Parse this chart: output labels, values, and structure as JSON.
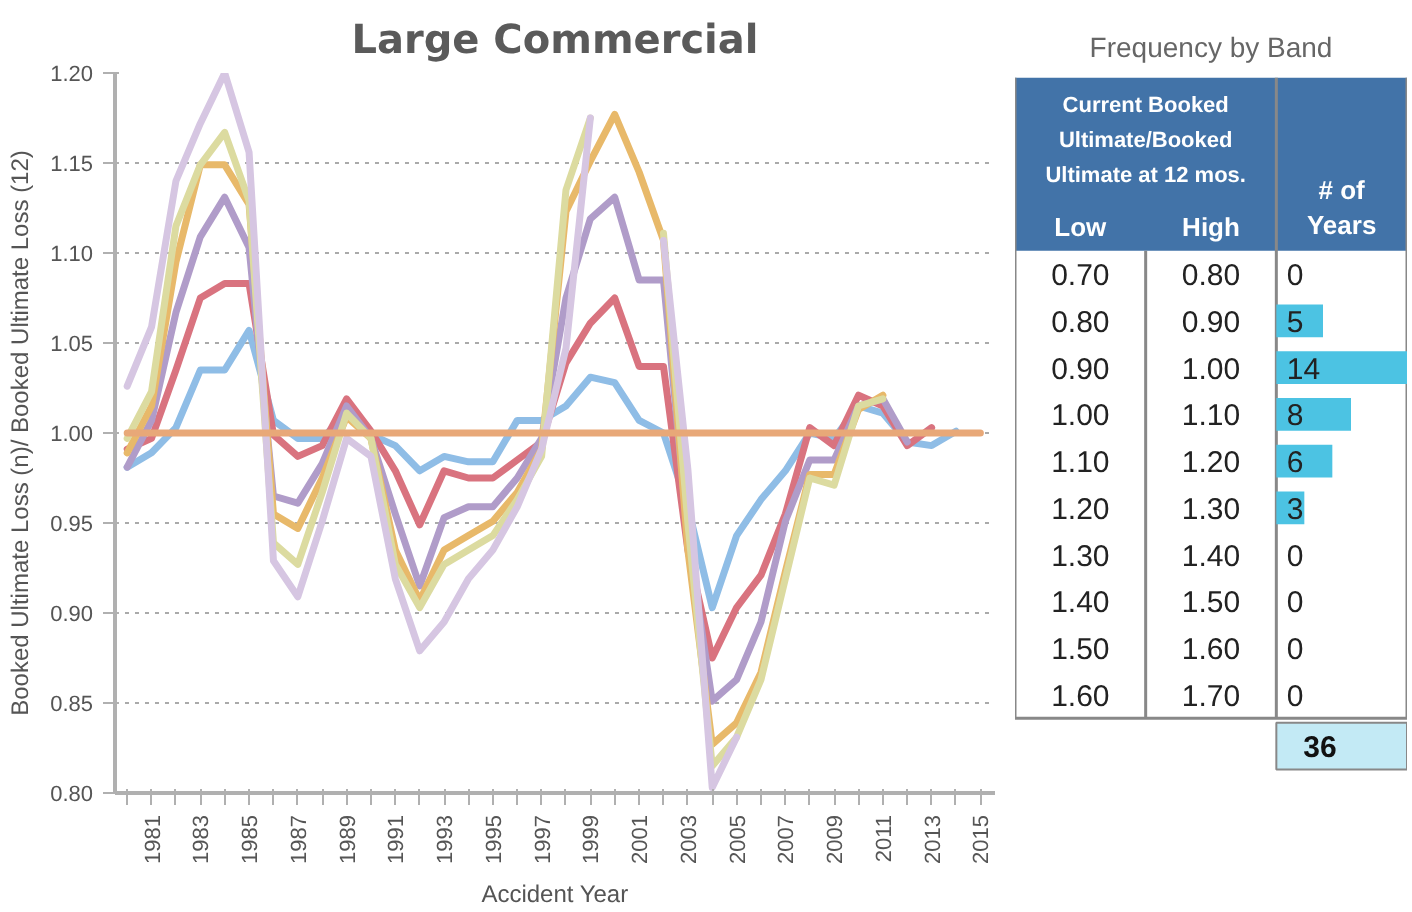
{
  "chart_data": [
    {
      "type": "line",
      "title": "Large Commercial",
      "xlabel": "Accident Year",
      "ylabel": "Booked Ultimate Loss (n)/ Booked Ultimate Loss (12)",
      "x": [
        1980,
        1981,
        1982,
        1983,
        1984,
        1985,
        1986,
        1987,
        1988,
        1989,
        1990,
        1991,
        1992,
        1993,
        1994,
        1995,
        1996,
        1997,
        1998,
        1999,
        2000,
        2001,
        2002,
        2003,
        2004,
        2005,
        2006,
        2007,
        2008,
        2009,
        2010,
        2011,
        2012,
        2013,
        2014,
        2015
      ],
      "xlim": [
        1979.5,
        2015.6
      ],
      "xticks": [
        {
          "value": 1980,
          "label": null
        },
        1981,
        {
          "value": 1982,
          "label": null
        },
        1983,
        {
          "value": 1984,
          "label": null
        },
        1985,
        {
          "value": 1986,
          "label": null
        },
        1987,
        {
          "value": 1988,
          "label": null
        },
        1989,
        {
          "value": 1990,
          "label": null
        },
        1991,
        {
          "value": 1992,
          "label": null
        },
        1993,
        {
          "value": 1994,
          "label": null
        },
        1995,
        {
          "value": 1996,
          "label": null
        },
        1997,
        {
          "value": 1998,
          "label": null
        },
        1999,
        {
          "value": 2000,
          "label": null
        },
        2001,
        {
          "value": 2002,
          "label": null
        },
        2003,
        {
          "value": 2004,
          "label": null
        },
        2005,
        {
          "value": 2006,
          "label": null
        },
        2007,
        {
          "value": 2008,
          "label": null
        },
        2009,
        {
          "value": 2010,
          "label": null
        },
        2011,
        {
          "value": 2012,
          "label": null
        },
        2013,
        {
          "value": 2014,
          "label": null
        },
        2015
      ],
      "ylim": [
        0.8,
        1.2
      ],
      "yticks": [
        {
          "value": 0.8,
          "label": "0.80"
        },
        {
          "value": 0.85,
          "label": "0.85"
        },
        {
          "value": 0.9,
          "label": "0.90"
        },
        {
          "value": 0.95,
          "label": "0.95"
        },
        {
          "value": 1.0,
          "label": "1.00"
        },
        {
          "value": 1.05,
          "label": "1.05"
        },
        {
          "value": 1.1,
          "label": "1.10"
        },
        {
          "value": 1.15,
          "label": "1.15"
        },
        {
          "value": 1.2,
          "label": "1.20"
        }
      ],
      "grid": "y",
      "line_style": "solid",
      "series": [
        {
          "color": "#8fbde6",
          "values": [
            0.981,
            0.989,
            1.003,
            1.035,
            1.035,
            1.057,
            1.007,
            0.997,
            0.997,
            1.011,
            0.999,
            0.993,
            0.979,
            0.987,
            0.984,
            0.984,
            1.007,
            1.007,
            1.015,
            1.031,
            1.028,
            1.007,
            1.0,
            0.959,
            0.903,
            0.943,
            0.963,
            0.979,
            1.0,
            0.997,
            1.015,
            1.011,
            0.995,
            0.993,
            1.001,
            null
          ]
        },
        {
          "color": "#d9737f",
          "values": [
            0.991,
            0.997,
            1.035,
            1.075,
            1.083,
            1.083,
            0.999,
            0.987,
            0.993,
            1.019,
            1.001,
            0.979,
            0.949,
            0.979,
            0.975,
            0.975,
            0.985,
            0.995,
            1.039,
            1.061,
            1.075,
            1.037,
            1.037,
            0.935,
            0.875,
            0.903,
            0.921,
            0.955,
            1.003,
            0.993,
            1.021,
            1.015,
            0.993,
            1.003,
            null,
            null
          ]
        },
        {
          "color": "#b09cc9",
          "values": [
            0.981,
            1.007,
            1.067,
            1.109,
            1.131,
            1.103,
            0.965,
            0.961,
            0.983,
            1.015,
            0.997,
            0.955,
            0.915,
            0.953,
            0.959,
            0.959,
            0.975,
            0.997,
            1.075,
            1.119,
            1.131,
            1.085,
            1.085,
            0.943,
            0.851,
            0.863,
            0.895,
            0.951,
            0.985,
            0.985,
            1.015,
            1.019,
            0.995,
            null,
            null,
            null
          ]
        },
        {
          "color": "#e8b96a",
          "values": [
            0.989,
            1.015,
            1.095,
            1.149,
            1.149,
            1.127,
            0.955,
            0.947,
            0.975,
            1.009,
            0.997,
            0.935,
            0.907,
            0.935,
            0.943,
            0.951,
            0.967,
            0.991,
            1.123,
            1.151,
            1.177,
            1.145,
            1.107,
            0.935,
            0.827,
            0.839,
            0.867,
            0.923,
            0.977,
            0.977,
            1.013,
            1.021,
            null,
            null,
            null,
            null
          ]
        },
        {
          "color": "#dcdba0",
          "values": [
            0.997,
            1.023,
            1.115,
            1.149,
            1.167,
            1.129,
            0.939,
            0.927,
            0.967,
            1.011,
            0.997,
            0.927,
            0.903,
            0.927,
            0.935,
            0.943,
            0.963,
            0.987,
            1.135,
            1.175,
            null,
            null,
            1.111,
            0.95,
            0.815,
            0.831,
            0.863,
            0.919,
            0.975,
            0.971,
            1.015,
            1.019,
            null,
            null,
            null,
            null
          ]
        },
        {
          "color": "#d6c6e2",
          "values": [
            1.026,
            1.059,
            1.14,
            1.172,
            1.2,
            1.156,
            0.929,
            0.909,
            0.951,
            0.997,
            0.987,
            0.919,
            0.879,
            0.895,
            0.919,
            0.935,
            0.959,
            0.991,
            1.047,
            1.175,
            null,
            null,
            1.107,
            0.98,
            0.803,
            0.831,
            null,
            null,
            null,
            null,
            null,
            null,
            null,
            null,
            null,
            null
          ]
        },
        {
          "color": "#e8a878",
          "values": [
            1.0,
            1.0,
            1.0,
            1.0,
            1.0,
            1.0,
            1.0,
            1.0,
            1.0,
            1.0,
            1.0,
            1.0,
            1.0,
            1.0,
            1.0,
            1.0,
            1.0,
            1.0,
            1.0,
            1.0,
            1.0,
            1.0,
            1.0,
            1.0,
            1.0,
            1.0,
            1.0,
            1.0,
            1.0,
            1.0,
            1.0,
            1.0,
            1.0,
            1.0,
            1.0,
            1.0
          ]
        }
      ]
    },
    {
      "type": "bar",
      "orientation": "horizontal",
      "title": "Frequency by Band",
      "categories": [
        "0.70",
        "0.80",
        "0.90",
        "1.00",
        "1.10",
        "1.20",
        "1.30",
        "1.40",
        "1.50",
        "1.60"
      ],
      "values": [
        0,
        5,
        14,
        8,
        6,
        3,
        0,
        0,
        0,
        0
      ],
      "color": "#4cc3e3",
      "xlim": [
        0,
        14
      ],
      "tick_labels": false,
      "data_labels": true,
      "annotations": [
        "Current Booked Ultimate/Booked Ultimate at 12 mos.",
        "Low",
        "High",
        "# of Years",
        "36",
        "0.80",
        "0.90",
        "1.00",
        "1.10",
        "1.20",
        "1.30",
        "1.40",
        "1.50",
        "1.60",
        "1.70"
      ]
    }
  ]
}
